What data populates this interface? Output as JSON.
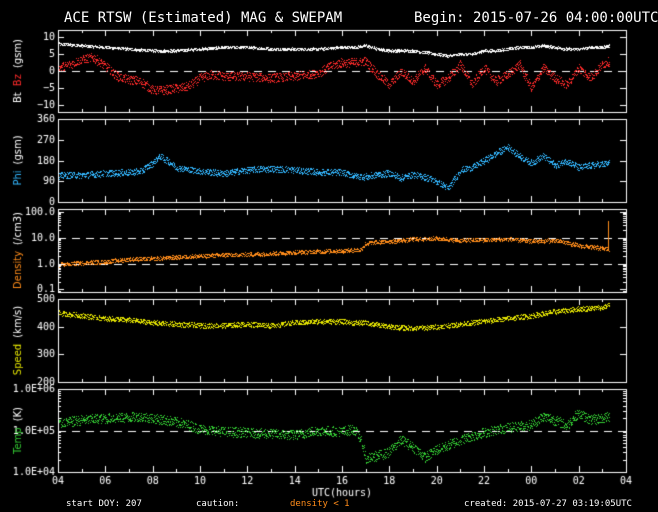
{
  "header": {
    "title": "ACE RTSW (Estimated) MAG & SWEPAM",
    "begin": "Begin: 2015-07-26 04:00:00UTC"
  },
  "footer": {
    "start_doy": "start DOY: 207",
    "caution": "caution:",
    "density_note": "density < 1",
    "created": "created: 2015-07-27 03:19:05UTC"
  },
  "colors": {
    "bt": "#ffffff",
    "bz": "#ff2a2a",
    "phi": "#33b7ff",
    "density": "#ff8c1a",
    "speed": "#e6e600",
    "temp": "#33cc33",
    "axis": "#ffffff",
    "background": "#000000"
  },
  "chart_data": {
    "type": "scatter",
    "x_axis": {
      "label": "UTC(hours)",
      "range_hours": [
        4,
        28
      ],
      "tick_labels": [
        "04",
        "06",
        "08",
        "10",
        "12",
        "14",
        "16",
        "18",
        "20",
        "22",
        "00",
        "02",
        "04"
      ]
    },
    "panels": [
      {
        "id": "mag",
        "ylabels": [
          {
            "text": "Bt",
            "color": "#ffffff"
          },
          {
            "text": "Bz",
            "color": "#ff2a2a"
          },
          {
            "text": "(gsm)",
            "color": "#ffffff"
          }
        ],
        "ylim": [
          -12,
          12
        ],
        "yscale": "linear",
        "yticks": [
          -10,
          -5,
          0,
          5,
          10
        ],
        "ytick_labels": [
          "−10",
          "−5",
          "0",
          "5",
          "10"
        ],
        "dashed": [
          0
        ],
        "series": [
          {
            "name": "Bt",
            "color": "#ffffff",
            "x": [
              4,
              5,
              6,
              7,
              8,
              9,
              10,
              11,
              12,
              13,
              14,
              15,
              16,
              16.5,
              17,
              17.5,
              18,
              18.5,
              19,
              19.5,
              20,
              20.5,
              21,
              21.5,
              22,
              22.5,
              23,
              23.5,
              24,
              24.5,
              25,
              25.5,
              26,
              26.5,
              27,
              27.3
            ],
            "y": [
              8,
              7.5,
              7,
              6.5,
              6,
              6,
              6.5,
              7,
              7,
              6.5,
              6.5,
              6.5,
              7,
              7,
              7.5,
              6.5,
              6,
              6,
              6,
              5.5,
              5,
              4.5,
              5,
              5,
              6,
              6,
              6.5,
              7,
              7,
              7.5,
              7,
              6.5,
              6.5,
              7,
              7,
              7.5
            ],
            "jitter": 0.4
          },
          {
            "name": "Bz",
            "color": "#ff2a2a",
            "x": [
              4,
              4.5,
              5,
              5.5,
              6,
              6.5,
              7,
              7.5,
              8,
              8.5,
              9,
              9.5,
              10,
              10.5,
              11,
              12,
              13,
              14,
              15,
              15.5,
              16,
              16.5,
              17,
              17.5,
              18,
              18.5,
              19,
              19.5,
              20,
              20.5,
              21,
              21.5,
              22,
              22.5,
              23,
              23.5,
              24,
              24.5,
              25,
              25.5,
              26,
              26.5,
              27,
              27.3
            ],
            "y": [
              1,
              2,
              3.5,
              4,
              1.5,
              -1.5,
              -2.5,
              -3,
              -5.5,
              -5.5,
              -5,
              -4.5,
              -2,
              -1,
              -1.5,
              -1.5,
              -2,
              -1.5,
              -0.5,
              1.5,
              2.5,
              2.5,
              3,
              -1,
              -4,
              0,
              -3,
              1,
              -4,
              -2,
              2,
              -4,
              1,
              -3,
              -1,
              2,
              -5,
              1,
              -2,
              -4,
              1,
              -2,
              2,
              3
            ],
            "jitter": 1.3
          }
        ]
      },
      {
        "id": "phi",
        "ylabels": [
          {
            "text": "Phi",
            "color": "#33b7ff"
          },
          {
            "text": "(gsm)",
            "color": "#ffffff"
          }
        ],
        "ylim": [
          0,
          360
        ],
        "yscale": "linear",
        "yticks": [
          0,
          90,
          180,
          270,
          360
        ],
        "ytick_labels": [
          "0",
          "90",
          "180",
          "270",
          "360"
        ],
        "dashed": [],
        "series": [
          {
            "name": "Phi",
            "color": "#33b7ff",
            "x": [
              4,
              5,
              6,
              7,
              7.5,
              8,
              8.3,
              8.7,
              9,
              10,
              11,
              12,
              13,
              14,
              15,
              16,
              16.5,
              17,
              17.5,
              18,
              18.5,
              19,
              19.5,
              20,
              20.5,
              21,
              21.5,
              22,
              22.5,
              23,
              23.5,
              24,
              24.5,
              25,
              25.5,
              26,
              26.5,
              27,
              27.3
            ],
            "y": [
              115,
              118,
              125,
              130,
              135,
              170,
              200,
              175,
              150,
              135,
              125,
              140,
              145,
              140,
              130,
              130,
              115,
              110,
              120,
              125,
              105,
              120,
              110,
              90,
              60,
              140,
              150,
              180,
              210,
              240,
              200,
              170,
              200,
              160,
              180,
              150,
              160,
              165,
              170
            ],
            "jitter": 14
          }
        ]
      },
      {
        "id": "density",
        "ylabels": [
          {
            "text": "Density",
            "color": "#ff8c1a"
          },
          {
            "text": "(/cm3)",
            "color": "#ffffff"
          }
        ],
        "ylim": [
          0.08,
          130
        ],
        "yscale": "log",
        "yticks": [
          0.1,
          1,
          10,
          100
        ],
        "ytick_labels": [
          "0.1",
          "1.0",
          "10.0",
          "100.0"
        ],
        "dashed": [
          1,
          10
        ],
        "series": [
          {
            "name": "Density",
            "color": "#ff8c1a",
            "x": [
              4,
              5,
              6,
              7,
              8,
              9,
              10,
              11,
              12,
              13,
              14,
              15,
              16,
              16.8,
              17,
              17.5,
              18,
              18.5,
              19,
              20,
              21,
              22,
              23,
              24,
              25,
              26,
              27,
              27.3
            ],
            "y": [
              0.9,
              1.1,
              1.2,
              1.5,
              1.6,
              1.8,
              2.0,
              2.2,
              2.3,
              2.5,
              2.8,
              3.0,
              3.2,
              3.5,
              6,
              7,
              7.5,
              8,
              9,
              9.5,
              8,
              8.5,
              9,
              7.5,
              8,
              5,
              4,
              3.5
            ],
            "jitter": 0.08,
            "spikes": [
              [
                27.25,
                45
              ]
            ]
          }
        ]
      },
      {
        "id": "speed",
        "ylabels": [
          {
            "text": "Speed",
            "color": "#e6e600"
          },
          {
            "text": "(km/s)",
            "color": "#ffffff"
          }
        ],
        "ylim": [
          200,
          500
        ],
        "yscale": "linear",
        "yticks": [
          200,
          300,
          400,
          500
        ],
        "ytick_labels": [
          "200",
          "300",
          "400",
          "500"
        ],
        "dashed": [],
        "series": [
          {
            "name": "Speed",
            "color": "#e6e600",
            "x": [
              4,
              5,
              6,
              7,
              8,
              9,
              10,
              11,
              12,
              13,
              14,
              15,
              16,
              16.5,
              17,
              18,
              19,
              20,
              21,
              22,
              23,
              24,
              25,
              26,
              27,
              27.3
            ],
            "y": [
              450,
              440,
              430,
              425,
              415,
              410,
              405,
              405,
              410,
              405,
              415,
              420,
              420,
              415,
              415,
              400,
              395,
              400,
              410,
              420,
              430,
              440,
              455,
              465,
              470,
              480
            ],
            "jitter": 9
          }
        ]
      },
      {
        "id": "temp",
        "ylabels": [
          {
            "text": "Temp",
            "color": "#33cc33"
          },
          {
            "text": "(K)",
            "color": "#ffffff"
          }
        ],
        "ylim": [
          10000,
          1000000
        ],
        "yscale": "log",
        "yticks": [
          10000,
          100000,
          1000000
        ],
        "ytick_labels": [
          "1.0E+04",
          "1.0E+05",
          "1.0E+06"
        ],
        "dashed": [
          100000
        ],
        "series": [
          {
            "name": "Temp",
            "color": "#33cc33",
            "x": [
              4,
              5,
              6,
              7,
              7.5,
              8,
              9,
              10,
              11,
              12,
              13,
              14,
              15,
              16,
              16.5,
              17,
              17.5,
              18,
              18.5,
              19,
              19.5,
              20,
              20.5,
              21,
              22,
              23,
              24,
              24.5,
              25,
              25.5,
              26,
              26.5,
              27,
              27.3
            ],
            "y": [
              150000,
              180000,
              200000,
              210000,
              220000,
              200000,
              160000,
              110000,
              95000,
              90000,
              85000,
              80000,
              100000,
              95000,
              110000,
              20000,
              25000,
              30000,
              60000,
              40000,
              22000,
              35000,
              45000,
              60000,
              90000,
              120000,
              140000,
              220000,
              180000,
              130000,
              260000,
              180000,
              200000,
              220000
            ],
            "jitter": 0.12
          }
        ]
      }
    ]
  }
}
